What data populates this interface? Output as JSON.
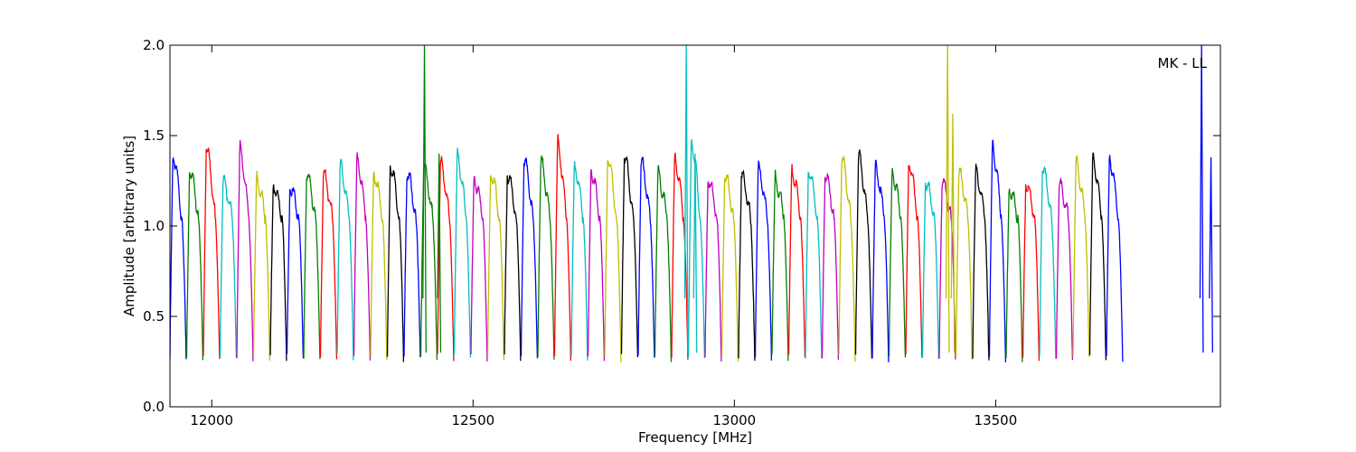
{
  "chart_data": {
    "type": "line",
    "title": "",
    "xlabel": "Frequency [MHz]",
    "ylabel": "Amplitude [arbitrary units]",
    "xlim": [
      11920,
      13930
    ],
    "ylim": [
      0.0,
      2.0
    ],
    "xticks": [
      12000,
      12500,
      13000,
      13500
    ],
    "xtick_labels": [
      "12000",
      "12500",
      "13000",
      "13500"
    ],
    "yticks": [
      0.0,
      0.5,
      1.0,
      1.5,
      2.0
    ],
    "ytick_labels": [
      "0.0",
      "0.5",
      "1.0",
      "1.5",
      "2.0"
    ],
    "annotation": "MK - LL",
    "grid": false,
    "legend": "none",
    "color_cycle": [
      "#0000ff",
      "#008000",
      "#ff0000",
      "#00bfbf",
      "#bf00bf",
      "#bfbf00",
      "#000000"
    ],
    "channel_start_mhz": 11920,
    "channel_width_mhz": 32,
    "channel_peaks": [
      1.4,
      1.32,
      1.44,
      1.25,
      1.43,
      1.26,
      1.23,
      1.22,
      1.29,
      1.29,
      1.34,
      1.37,
      1.3,
      1.35,
      1.3,
      1.34,
      1.35,
      1.39,
      1.27,
      1.31,
      1.29,
      1.37,
      1.36,
      1.46,
      1.34,
      1.31,
      1.39,
      1.39,
      1.36,
      1.29,
      1.38,
      1.48,
      1.27,
      1.29,
      1.29,
      1.32,
      1.26,
      1.32,
      1.32,
      1.3,
      1.38,
      1.4,
      1.33,
      1.3,
      1.36,
      1.25,
      1.25,
      1.3,
      1.3,
      1.45,
      1.21,
      1.24,
      1.33,
      1.23,
      1.36,
      1.38,
      1.38
    ],
    "spikes": [
      {
        "x": 12407,
        "peak": 2.0,
        "series_color": "#008000"
      },
      {
        "x": 12435,
        "peak": 1.4,
        "series_color": "#008000"
      },
      {
        "x": 12908,
        "peak": 2.0,
        "series_color": "#00bfbf"
      },
      {
        "x": 12925,
        "peak": 1.4,
        "series_color": "#00bfbf"
      },
      {
        "x": 13408,
        "peak": 2.0,
        "series_color": "#bfbf00"
      },
      {
        "x": 13418,
        "peak": 1.62,
        "series_color": "#bfbf00"
      },
      {
        "x": 13894,
        "peak": 2.0,
        "series_color": "#0000ff"
      },
      {
        "x": 13912,
        "peak": 1.38,
        "series_color": "#0000ff"
      }
    ]
  }
}
